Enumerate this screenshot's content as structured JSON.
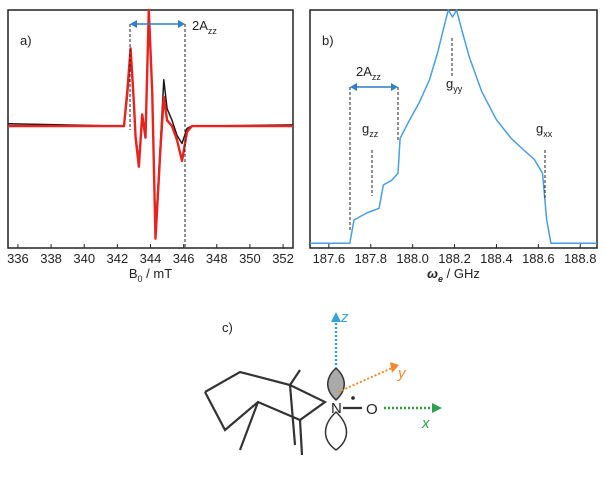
{
  "chart_data": [
    {
      "type": "line",
      "label": "a)",
      "xlabel": [
        "B",
        "0",
        " / mT"
      ],
      "annotations": [
        {
          "text": "2A",
          "sub": "zz"
        }
      ],
      "x": [
        335.4,
        342.4,
        342.6,
        342.8,
        343.0,
        343.1,
        343.3,
        343.5,
        343.7,
        343.9,
        344.1,
        344.3,
        344.6,
        344.8,
        345.0,
        345.3,
        345.6,
        345.9,
        346.2,
        346.5,
        352.6
      ],
      "series": [
        {
          "color": "#1a1a1a",
          "values": [
            0.02,
            0,
            0.25,
            0.6,
            0.2,
            -0.08,
            -0.3,
            0.08,
            -0.08,
            0.95,
            0.3,
            -0.9,
            -0.15,
            0.4,
            0.15,
            0.05,
            -0.08,
            -0.15,
            -0.02,
            0,
            0.01
          ]
        },
        {
          "color": "#e8231f",
          "values": [
            0,
            0,
            0.3,
            0.67,
            0.2,
            -0.1,
            -0.35,
            0.1,
            -0.1,
            1.0,
            0.3,
            -0.97,
            -0.2,
            0.25,
            0.05,
            0.0,
            -0.12,
            -0.3,
            -0.05,
            0,
            0
          ]
        }
      ],
      "xlim": [
        335.4,
        352.6
      ],
      "ylim": [
        -1.05,
        1.0
      ],
      "xticks": [
        336,
        338,
        340,
        342,
        344,
        346,
        348,
        350,
        352
      ]
    },
    {
      "type": "line",
      "label": "b)",
      "xlabel": [
        "ω",
        "e",
        " / GHz"
      ],
      "annotations": [
        {
          "text": "2A",
          "sub": "zz"
        },
        {
          "text": "g",
          "sub": "zz"
        },
        {
          "text": "g",
          "sub": "yy"
        },
        {
          "text": "g",
          "sub": "xx"
        }
      ],
      "x": [
        187.51,
        187.7,
        187.72,
        187.78,
        187.84,
        187.86,
        187.9,
        187.93,
        187.94,
        187.98,
        188.03,
        188.08,
        188.12,
        188.15,
        188.17,
        188.19,
        188.21,
        188.23,
        188.27,
        188.33,
        188.4,
        188.47,
        188.53,
        188.58,
        188.62,
        188.64,
        188.66,
        188.88
      ],
      "series": [
        {
          "color": "#4a9ee0",
          "values": [
            0,
            0,
            0.1,
            0.13,
            0.15,
            0.25,
            0.27,
            0.3,
            0.45,
            0.52,
            0.6,
            0.7,
            0.82,
            0.93,
            1.0,
            0.97,
            1.0,
            0.93,
            0.8,
            0.65,
            0.53,
            0.45,
            0.4,
            0.36,
            0.3,
            0.1,
            0,
            0
          ]
        }
      ],
      "xlim": [
        187.51,
        188.88
      ],
      "ylim": [
        -0.02,
        1.0
      ],
      "xticks": [
        187.6,
        187.8,
        {
          "value": 188,
          "label": "188.0"
        },
        188.2,
        188.4,
        188.6,
        188.8
      ]
    }
  ],
  "diagram": {
    "label": "c)",
    "axes": [
      "z",
      "y",
      "x"
    ],
    "atoms": [
      "N",
      "O"
    ]
  }
}
